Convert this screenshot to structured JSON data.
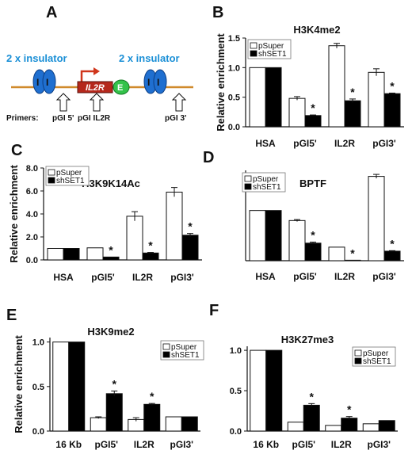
{
  "panels": {
    "a": {
      "letter": "A",
      "insulator_left": "2 x insulator",
      "insulator_right": "2 x insulator",
      "gene_label": "IL2R",
      "enhancer_label": "E",
      "insulator_mark": "I",
      "primers_label": "Primers:",
      "primer_1": "pGI 5'",
      "primer_2": "pGI IL2R",
      "primer_3": "pGI 3'"
    },
    "b": {
      "letter": "B"
    },
    "c": {
      "letter": "C"
    },
    "d": {
      "letter": "D"
    },
    "e": {
      "letter": "E"
    },
    "f": {
      "letter": "F"
    }
  },
  "colors": {
    "open_bar": "#ffffff",
    "filled_bar": "#000000",
    "insulator": "#1f6fd0",
    "gene": "#b5281c",
    "enhancer": "#33c24a",
    "line": "#d08a2c",
    "arrow": "#d0361c"
  },
  "chart_data": [
    {
      "id": "B",
      "type": "bar",
      "title": "H3K4me2",
      "ylabel": "Relative enrichment",
      "categories": [
        "HSA",
        "pGI5'",
        "IL2R",
        "pGI3'"
      ],
      "ylim": [
        0,
        1.5
      ],
      "yticks": [
        0,
        0.5,
        1.0,
        1.5
      ],
      "ytick_labels": [
        "0.0",
        "0.5",
        "1.0",
        "1.5"
      ],
      "legend": "top-left",
      "series": [
        {
          "name": "pSuper",
          "values": [
            1.0,
            0.48,
            1.37,
            0.92
          ],
          "errors": [
            0,
            0.03,
            0.04,
            0.06
          ]
        },
        {
          "name": "shSET1",
          "values": [
            1.0,
            0.19,
            0.44,
            0.56
          ],
          "errors": [
            0,
            0.01,
            0.03,
            0.01
          ]
        }
      ],
      "significance": [
        false,
        true,
        true,
        true
      ]
    },
    {
      "id": "C",
      "type": "bar",
      "title": "H3K9K14Ac",
      "ylabel": "Relative enrichment",
      "categories": [
        "HSA",
        "pGI5'",
        "IL2R",
        "pGI3'"
      ],
      "ylim": [
        0,
        8.0
      ],
      "yticks": [
        0,
        2,
        4,
        6,
        8
      ],
      "ytick_labels": [
        "0.0",
        "2.0",
        "4.0",
        "6.0",
        "8.0"
      ],
      "legend": "top-left",
      "series": [
        {
          "name": "pSuper",
          "values": [
            1.0,
            1.05,
            3.8,
            5.9
          ],
          "errors": [
            0,
            0,
            0.4,
            0.4
          ]
        },
        {
          "name": "shSET1",
          "values": [
            1.0,
            0.25,
            0.6,
            2.15
          ],
          "errors": [
            0,
            0,
            0.05,
            0.15
          ]
        }
      ],
      "significance": [
        false,
        true,
        true,
        true
      ]
    },
    {
      "id": "D",
      "type": "bar",
      "title": "BPTF",
      "ylabel": "",
      "categories": [
        "HSA",
        "pGI5'",
        "IL2R",
        "pGI3'"
      ],
      "ylim": [
        0,
        1.8
      ],
      "yticks": [],
      "ytick_labels": [],
      "legend": "top-left",
      "series": [
        {
          "name": "pSuper",
          "values": [
            1.0,
            0.8,
            0.27,
            1.68
          ],
          "errors": [
            0,
            0.02,
            0,
            0.04
          ]
        },
        {
          "name": "shSET1",
          "values": [
            1.0,
            0.35,
            0.01,
            0.19
          ],
          "errors": [
            0,
            0.02,
            0,
            0.01
          ]
        }
      ],
      "significance": [
        false,
        true,
        true,
        true
      ]
    },
    {
      "id": "E",
      "type": "bar",
      "title": "H3K9me2",
      "ylabel": "Relative enrichment",
      "categories": [
        "16 Kb",
        "pGI5'",
        "IL2R",
        "pGI3'"
      ],
      "ylim": [
        0,
        1.05
      ],
      "yticks": [
        0,
        0.5,
        1.0
      ],
      "ytick_labels": [
        "0.0",
        "0.5",
        "1.0"
      ],
      "legend": "top-right",
      "series": [
        {
          "name": "pSuper",
          "values": [
            1.0,
            0.15,
            0.13,
            0.16
          ],
          "errors": [
            0,
            0.01,
            0.02,
            0
          ]
        },
        {
          "name": "shSET1",
          "values": [
            1.0,
            0.42,
            0.3,
            0.16
          ],
          "errors": [
            0,
            0.03,
            0.01,
            0
          ]
        }
      ],
      "significance": [
        false,
        true,
        true,
        false
      ]
    },
    {
      "id": "F",
      "type": "bar",
      "title": "H3K27me3",
      "ylabel": "",
      "categories": [
        "16 Kb",
        "pGI5'",
        "IL2R",
        "pGI3'"
      ],
      "ylim": [
        0,
        1.05
      ],
      "yticks": [
        0,
        0.5,
        1.0
      ],
      "ytick_labels": [
        "0.0",
        "0.5",
        "1.0"
      ],
      "legend": "top-right",
      "series": [
        {
          "name": "pSuper",
          "values": [
            1.0,
            0.11,
            0.07,
            0.09
          ],
          "errors": [
            0,
            0,
            0,
            0
          ]
        },
        {
          "name": "shSET1",
          "values": [
            1.0,
            0.32,
            0.16,
            0.13
          ],
          "errors": [
            0,
            0.02,
            0.02,
            0
          ]
        }
      ],
      "significance": [
        false,
        true,
        true,
        false
      ]
    }
  ]
}
